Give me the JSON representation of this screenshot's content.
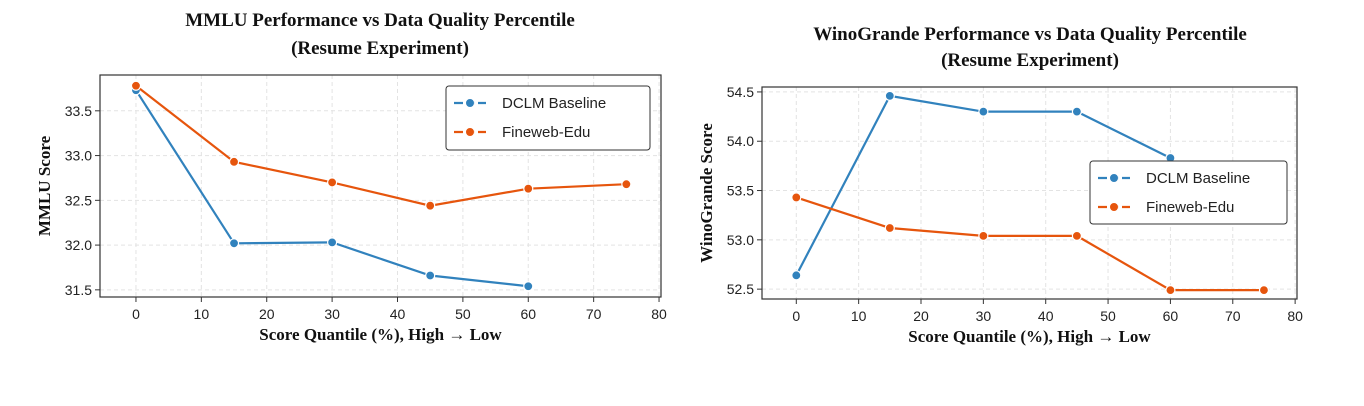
{
  "colors": {
    "dclm": "#3182bd",
    "fineweb": "#e6550d"
  },
  "chart_data": [
    {
      "type": "line",
      "title": [
        "MMLU Performance vs Data Quality Percentile",
        "(Resume Experiment)"
      ],
      "xlabel": "Score Quantile (%), High → Low",
      "ylabel": "MMLU Score",
      "xlim": [
        -5.5,
        80.3
      ],
      "ylim": [
        31.42,
        33.9
      ],
      "xticks": [
        0,
        10,
        20,
        30,
        40,
        50,
        60,
        70,
        80
      ],
      "yticks": [
        "31.5",
        "32.0",
        "32.5",
        "33.0",
        "33.5"
      ],
      "grid": true,
      "legend": "top-right",
      "series": [
        {
          "name": "DCLM Baseline",
          "color_key": "dclm",
          "x": [
            0,
            15,
            30,
            45,
            60
          ],
          "y": [
            33.73,
            32.02,
            32.03,
            31.66,
            31.54
          ]
        },
        {
          "name": "Fineweb-Edu",
          "color_key": "fineweb",
          "x": [
            0,
            15,
            30,
            45,
            60,
            75
          ],
          "y": [
            33.78,
            32.93,
            32.7,
            32.44,
            32.63,
            32.68
          ]
        }
      ]
    },
    {
      "type": "line",
      "title": [
        "WinoGrande Performance vs Data Quality Percentile",
        "(Resume Experiment)"
      ],
      "xlabel": "Score Quantile (%), High → Low",
      "ylabel": "WinoGrande Score",
      "xlim": [
        -5.5,
        80.3
      ],
      "ylim": [
        52.4,
        54.55
      ],
      "xticks": [
        0,
        10,
        20,
        30,
        40,
        50,
        60,
        70,
        80
      ],
      "yticks": [
        "52.5",
        "53.0",
        "53.5",
        "54.0",
        "54.5"
      ],
      "grid": true,
      "legend": "center-right",
      "series": [
        {
          "name": "DCLM Baseline",
          "color_key": "dclm",
          "x": [
            0,
            15,
            30,
            45,
            60
          ],
          "y": [
            52.64,
            54.46,
            54.3,
            54.3,
            53.83
          ]
        },
        {
          "name": "Fineweb-Edu",
          "color_key": "fineweb",
          "x": [
            0,
            15,
            30,
            45,
            60,
            75
          ],
          "y": [
            53.43,
            53.12,
            53.04,
            53.04,
            52.49,
            52.49
          ]
        }
      ]
    }
  ]
}
